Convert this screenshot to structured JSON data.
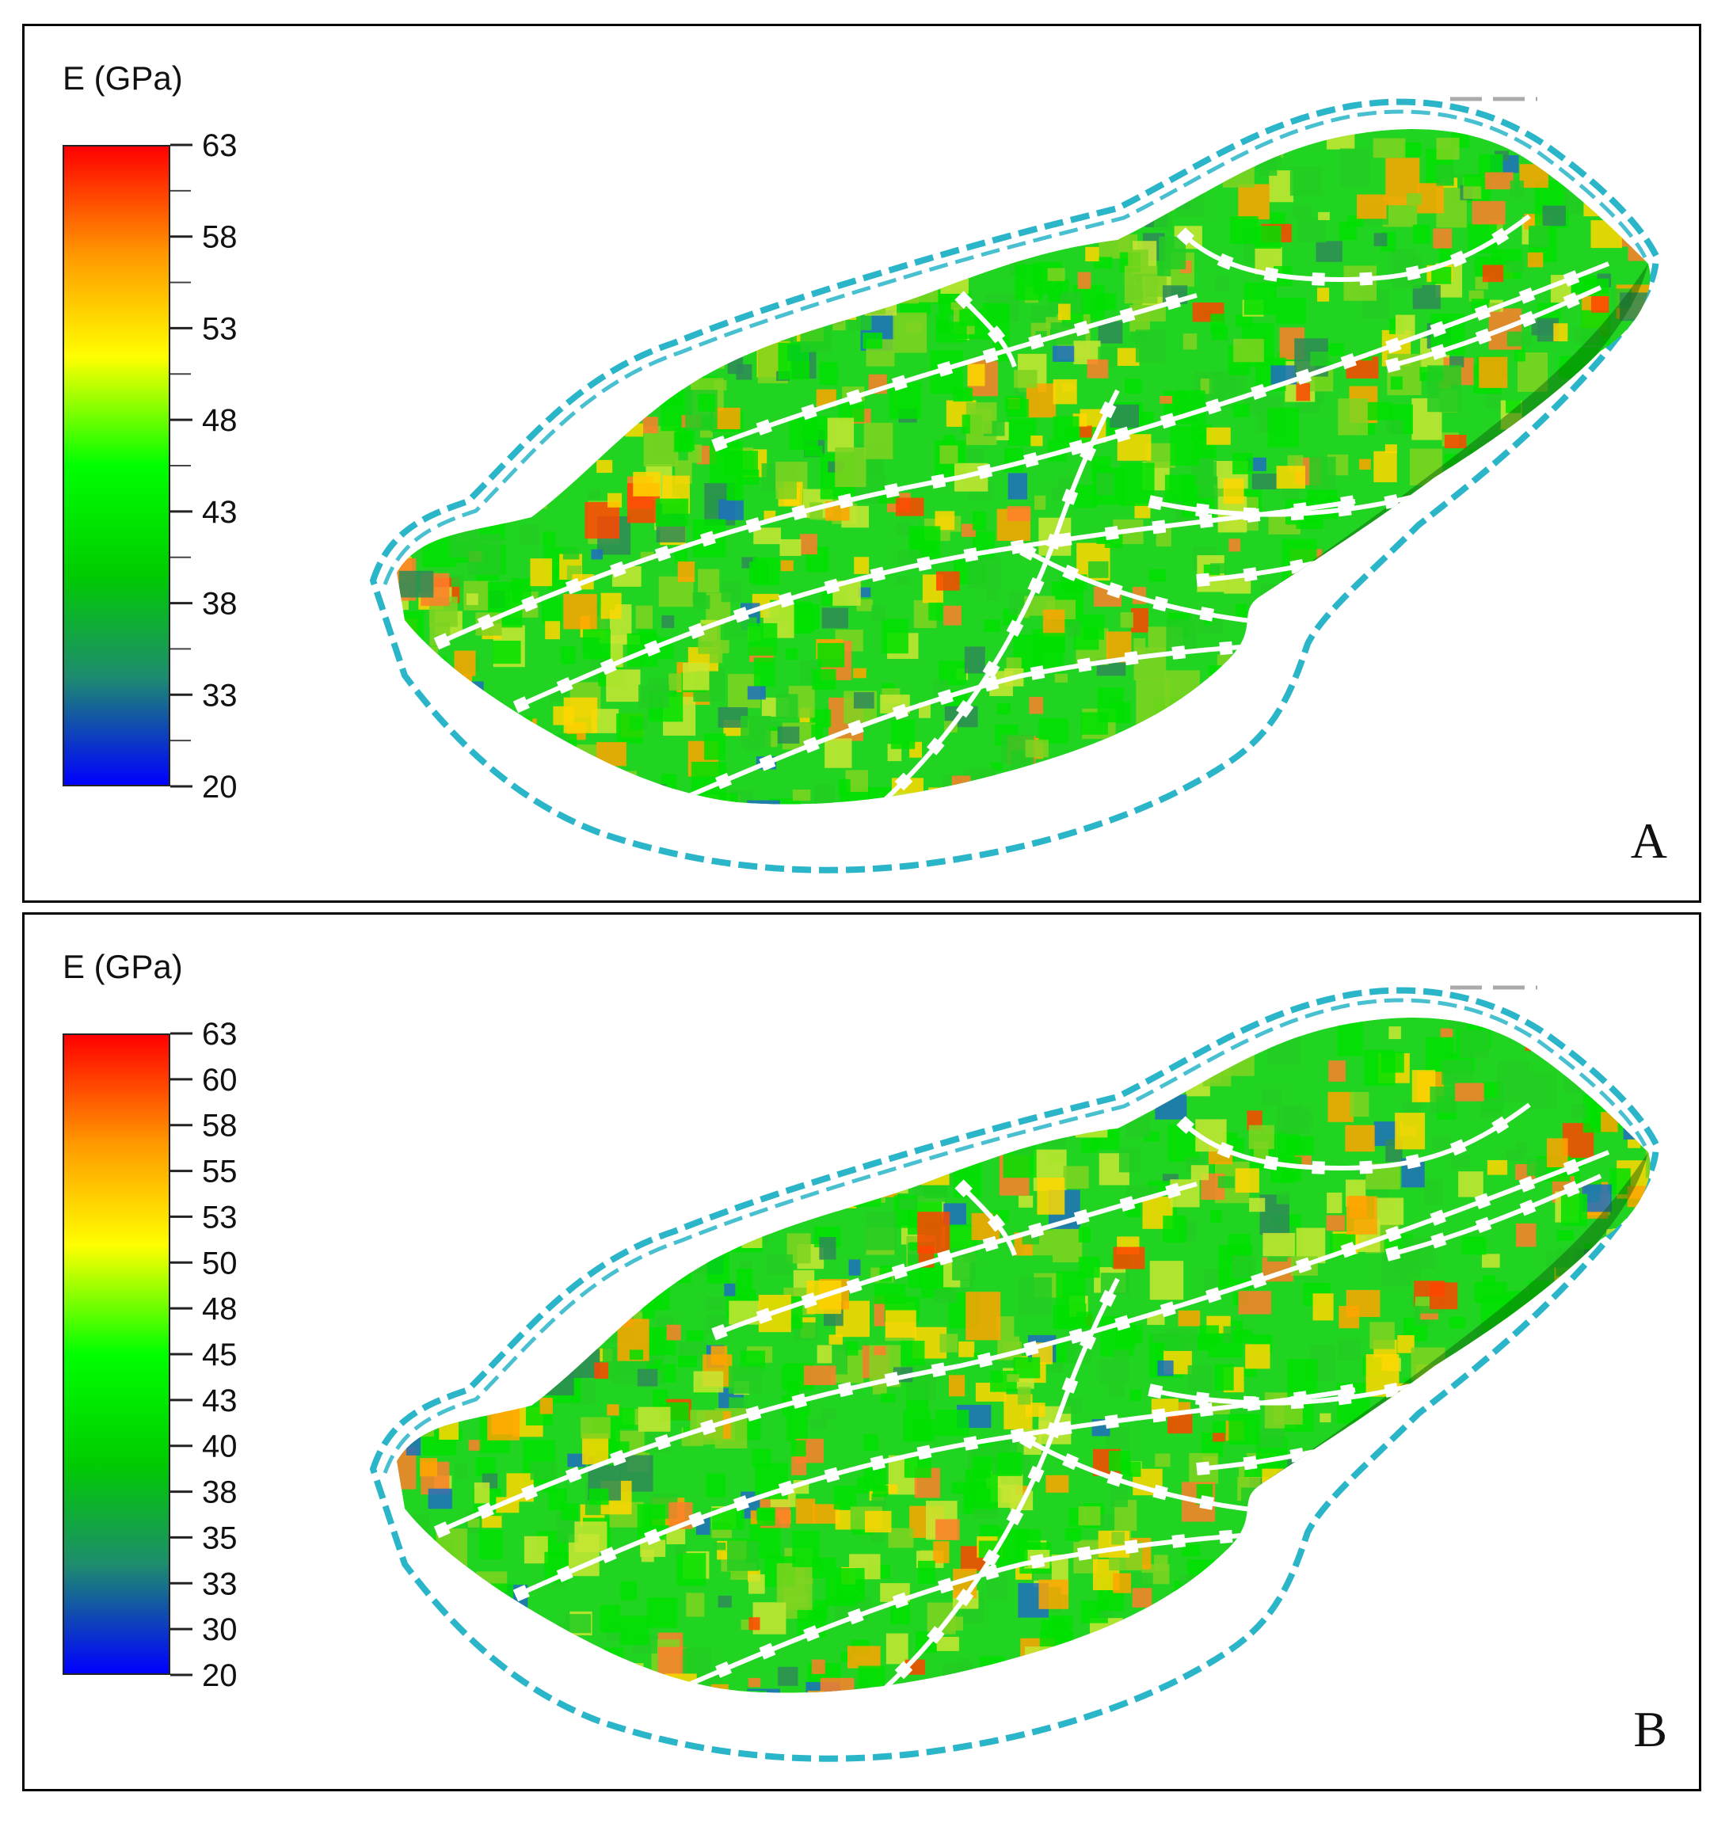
{
  "colorbar_colors": [
    "#0000ff",
    "#1e8c6e",
    "#00cc00",
    "#00ff00",
    "#ffff00",
    "#ff9900",
    "#ff0000"
  ],
  "panels": [
    {
      "letter": "A",
      "colorbar_title": "E (GPa)",
      "min": 20,
      "max": 63,
      "major_ticks": [
        "63",
        "58",
        "53",
        "48",
        "43",
        "38",
        "33",
        "20"
      ],
      "minor_between": true
    },
    {
      "letter": "B",
      "colorbar_title": "E (GPa)",
      "min": 20,
      "max": 63,
      "major_ticks": [
        "63",
        "60",
        "58",
        "55",
        "53",
        "50",
        "48",
        "45",
        "43",
        "40",
        "38",
        "35",
        "33",
        "30",
        "20"
      ],
      "minor_between": false
    }
  ]
}
